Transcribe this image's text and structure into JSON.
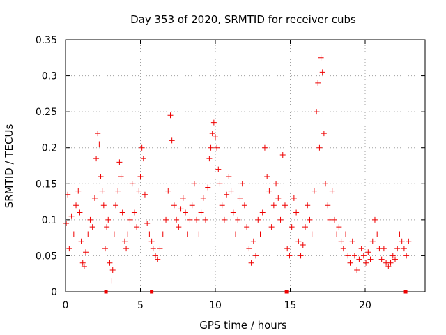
{
  "chart_data": {
    "type": "scatter",
    "title": "Day 353 of 2020, SRMTID for receiver cubs",
    "xlabel": "GPS time / hours",
    "ylabel": "SRMTID / TECUs",
    "xlim": [
      0,
      24
    ],
    "ylim": [
      0,
      0.35
    ],
    "x_ticks": [
      {
        "value": 0,
        "label": "0"
      },
      {
        "value": 5,
        "label": "5"
      },
      {
        "value": 10,
        "label": "10"
      },
      {
        "value": 15,
        "label": "15"
      },
      {
        "value": 20,
        "label": "20"
      }
    ],
    "y_ticks": [
      {
        "value": 0,
        "label": "0"
      },
      {
        "value": 0.05,
        "label": "0.05"
      },
      {
        "value": 0.1,
        "label": "0.1"
      },
      {
        "value": 0.15,
        "label": "0.15"
      },
      {
        "value": 0.2,
        "label": "0.2"
      },
      {
        "value": 0.25,
        "label": "0.25"
      },
      {
        "value": 0.3,
        "label": "0.3"
      },
      {
        "value": 0.35,
        "label": "0.35"
      }
    ],
    "grid": true,
    "series_color": "#ee0000",
    "axis_markers_x": [
      2.7,
      5.75,
      14.75,
      22.7
    ],
    "series": [
      {
        "name": "SRMTID",
        "marker": "plus",
        "points": [
          [
            0.05,
            0.095
          ],
          [
            0.15,
            0.135
          ],
          [
            0.25,
            0.06
          ],
          [
            0.4,
            0.105
          ],
          [
            0.55,
            0.08
          ],
          [
            0.7,
            0.12
          ],
          [
            0.85,
            0.14
          ],
          [
            0.95,
            0.11
          ],
          [
            1.05,
            0.07
          ],
          [
            1.15,
            0.04
          ],
          [
            1.25,
            0.035
          ],
          [
            1.35,
            0.055
          ],
          [
            1.5,
            0.08
          ],
          [
            1.65,
            0.1
          ],
          [
            1.8,
            0.09
          ],
          [
            1.95,
            0.13
          ],
          [
            2.05,
            0.185
          ],
          [
            2.15,
            0.22
          ],
          [
            2.25,
            0.205
          ],
          [
            2.35,
            0.16
          ],
          [
            2.45,
            0.14
          ],
          [
            2.55,
            0.12
          ],
          [
            2.65,
            0.06
          ],
          [
            2.75,
            0.09
          ],
          [
            2.85,
            0.1
          ],
          [
            2.95,
            0.04
          ],
          [
            3.05,
            0.015
          ],
          [
            3.15,
            0.03
          ],
          [
            3.25,
            0.08
          ],
          [
            3.35,
            0.12
          ],
          [
            3.5,
            0.14
          ],
          [
            3.6,
            0.18
          ],
          [
            3.7,
            0.16
          ],
          [
            3.8,
            0.11
          ],
          [
            3.95,
            0.07
          ],
          [
            4.05,
            0.06
          ],
          [
            4.15,
            0.08
          ],
          [
            4.3,
            0.1
          ],
          [
            4.45,
            0.15
          ],
          [
            4.6,
            0.11
          ],
          [
            4.75,
            0.09
          ],
          [
            4.9,
            0.14
          ],
          [
            5.0,
            0.16
          ],
          [
            5.1,
            0.2
          ],
          [
            5.2,
            0.185
          ],
          [
            5.3,
            0.135
          ],
          [
            5.45,
            0.095
          ],
          [
            5.6,
            0.08
          ],
          [
            5.75,
            0.07
          ],
          [
            5.85,
            0.06
          ],
          [
            6.0,
            0.05
          ],
          [
            6.15,
            0.045
          ],
          [
            6.3,
            0.06
          ],
          [
            6.5,
            0.08
          ],
          [
            6.7,
            0.1
          ],
          [
            6.85,
            0.14
          ],
          [
            7.0,
            0.245
          ],
          [
            7.1,
            0.21
          ],
          [
            7.25,
            0.12
          ],
          [
            7.4,
            0.1
          ],
          [
            7.55,
            0.09
          ],
          [
            7.7,
            0.115
          ],
          [
            7.85,
            0.13
          ],
          [
            8.0,
            0.11
          ],
          [
            8.15,
            0.08
          ],
          [
            8.3,
            0.1
          ],
          [
            8.45,
            0.12
          ],
          [
            8.6,
            0.15
          ],
          [
            8.75,
            0.1
          ],
          [
            8.9,
            0.08
          ],
          [
            9.05,
            0.11
          ],
          [
            9.2,
            0.13
          ],
          [
            9.35,
            0.1
          ],
          [
            9.5,
            0.145
          ],
          [
            9.6,
            0.185
          ],
          [
            9.7,
            0.2
          ],
          [
            9.8,
            0.22
          ],
          [
            9.9,
            0.235
          ],
          [
            10.0,
            0.215
          ],
          [
            10.1,
            0.2
          ],
          [
            10.2,
            0.17
          ],
          [
            10.3,
            0.15
          ],
          [
            10.45,
            0.12
          ],
          [
            10.6,
            0.1
          ],
          [
            10.75,
            0.135
          ],
          [
            10.9,
            0.16
          ],
          [
            11.05,
            0.14
          ],
          [
            11.2,
            0.11
          ],
          [
            11.35,
            0.08
          ],
          [
            11.5,
            0.1
          ],
          [
            11.65,
            0.13
          ],
          [
            11.8,
            0.15
          ],
          [
            11.95,
            0.12
          ],
          [
            12.1,
            0.09
          ],
          [
            12.25,
            0.06
          ],
          [
            12.4,
            0.04
          ],
          [
            12.55,
            0.07
          ],
          [
            12.7,
            0.05
          ],
          [
            12.85,
            0.1
          ],
          [
            13.0,
            0.08
          ],
          [
            13.15,
            0.11
          ],
          [
            13.3,
            0.2
          ],
          [
            13.45,
            0.16
          ],
          [
            13.6,
            0.14
          ],
          [
            13.75,
            0.09
          ],
          [
            13.9,
            0.12
          ],
          [
            14.05,
            0.15
          ],
          [
            14.2,
            0.13
          ],
          [
            14.35,
            0.1
          ],
          [
            14.5,
            0.19
          ],
          [
            14.65,
            0.12
          ],
          [
            14.8,
            0.06
          ],
          [
            14.95,
            0.05
          ],
          [
            15.1,
            0.09
          ],
          [
            15.25,
            0.13
          ],
          [
            15.4,
            0.11
          ],
          [
            15.55,
            0.07
          ],
          [
            15.7,
            0.05
          ],
          [
            15.85,
            0.065
          ],
          [
            16.0,
            0.09
          ],
          [
            16.15,
            0.12
          ],
          [
            16.3,
            0.1
          ],
          [
            16.45,
            0.08
          ],
          [
            16.6,
            0.14
          ],
          [
            16.75,
            0.25
          ],
          [
            16.85,
            0.29
          ],
          [
            16.95,
            0.2
          ],
          [
            17.05,
            0.325
          ],
          [
            17.15,
            0.305
          ],
          [
            17.25,
            0.22
          ],
          [
            17.35,
            0.15
          ],
          [
            17.5,
            0.12
          ],
          [
            17.65,
            0.1
          ],
          [
            17.8,
            0.14
          ],
          [
            17.95,
            0.1
          ],
          [
            18.1,
            0.08
          ],
          [
            18.25,
            0.09
          ],
          [
            18.4,
            0.07
          ],
          [
            18.55,
            0.06
          ],
          [
            18.7,
            0.08
          ],
          [
            18.85,
            0.05
          ],
          [
            19.0,
            0.04
          ],
          [
            19.15,
            0.07
          ],
          [
            19.3,
            0.05
          ],
          [
            19.45,
            0.03
          ],
          [
            19.6,
            0.045
          ],
          [
            19.75,
            0.06
          ],
          [
            19.9,
            0.05
          ],
          [
            20.05,
            0.04
          ],
          [
            20.2,
            0.055
          ],
          [
            20.35,
            0.045
          ],
          [
            20.5,
            0.07
          ],
          [
            20.65,
            0.1
          ],
          [
            20.8,
            0.08
          ],
          [
            20.95,
            0.06
          ],
          [
            21.1,
            0.045
          ],
          [
            21.25,
            0.06
          ],
          [
            21.4,
            0.04
          ],
          [
            21.55,
            0.035
          ],
          [
            21.7,
            0.04
          ],
          [
            21.85,
            0.05
          ],
          [
            22.0,
            0.045
          ],
          [
            22.15,
            0.06
          ],
          [
            22.3,
            0.08
          ],
          [
            22.45,
            0.07
          ],
          [
            22.6,
            0.06
          ],
          [
            22.75,
            0.05
          ],
          [
            22.9,
            0.07
          ]
        ]
      }
    ]
  }
}
